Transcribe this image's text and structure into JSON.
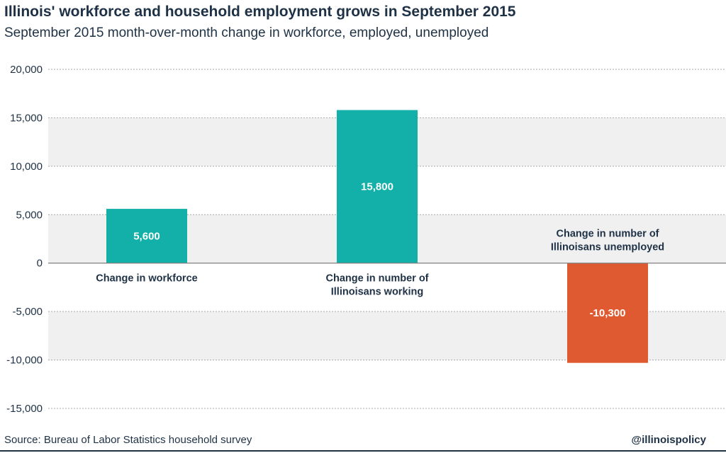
{
  "chart_data": {
    "type": "bar",
    "title": "Illinois' workforce and household employment grows in September 2015",
    "subtitle": "September 2015 month-over-month change in workforce, employed, unemployed",
    "categories": [
      "Change in workforce",
      "Change in number of Illinoisans working",
      "Change in number of Illinoisans unemployed"
    ],
    "category_lines": [
      [
        "Change in workforce"
      ],
      [
        "Change in number of",
        "Illinoisans working"
      ],
      [
        "Change in number of",
        "Illinoisans unemployed"
      ]
    ],
    "values": [
      5600,
      15800,
      -10300
    ],
    "data_labels": [
      "5,600",
      "15,800",
      "-10,300"
    ],
    "colors": [
      "#12b0a8",
      "#12b0a8",
      "#e05a31"
    ],
    "ylim": [
      -15000,
      20000
    ],
    "yticks": [
      20000,
      15000,
      10000,
      5000,
      0,
      -5000,
      -10000,
      -15000
    ],
    "ytick_labels": [
      "20,000",
      "15,000",
      "10,000",
      "5,000",
      "0",
      "-5,000",
      "-10,000",
      "-15,000"
    ],
    "grid": true,
    "band_color": "#f0f0f0",
    "xlabel": "",
    "ylabel": ""
  },
  "footer": {
    "source": "Source: Bureau of Labor Statistics household survey",
    "handle": "@illinoispolicy"
  },
  "colors": {
    "text": "#1e3145",
    "positive": "#12b0a8",
    "negative": "#e05a31"
  }
}
